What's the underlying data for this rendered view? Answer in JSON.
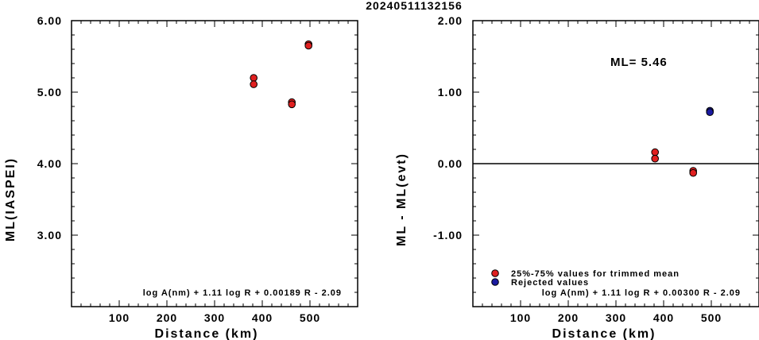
{
  "title": "20240511132156",
  "chart_data": [
    {
      "type": "scatter",
      "xlabel": "Distance (km)",
      "ylabel": "ML(IASPEI)",
      "xlim": [
        0,
        600
      ],
      "ylim": [
        2.0,
        6.0
      ],
      "xticks": [
        100,
        200,
        300,
        400,
        500
      ],
      "xtick_labels": [
        "100",
        "200",
        "300",
        "400",
        "500"
      ],
      "yticks": [
        3.0,
        4.0,
        5.0,
        6.0
      ],
      "ytick_labels": [
        "3.00",
        "4.00",
        "5.00",
        "6.00"
      ],
      "series": [
        {
          "color": "#e02020",
          "points": [
            {
              "x": 382,
              "y": 5.2
            },
            {
              "x": 382,
              "y": 5.11
            },
            {
              "x": 462,
              "y": 4.86
            },
            {
              "x": 462,
              "y": 4.83
            },
            {
              "x": 497,
              "y": 5.67
            },
            {
              "x": 497,
              "y": 5.65
            }
          ]
        }
      ],
      "annotation": "log A(nm) + 1.11 log R + 0.00189 R - 2.09",
      "grid": false
    },
    {
      "type": "scatter",
      "xlabel": "Distance (km)",
      "ylabel": "ML - ML(evt)",
      "xlim": [
        0,
        600
      ],
      "ylim": [
        -2.0,
        2.0
      ],
      "xticks": [
        100,
        200,
        300,
        400,
        500
      ],
      "xtick_labels": [
        "100",
        "200",
        "300",
        "400",
        "500"
      ],
      "yticks": [
        -1.0,
        0.0,
        1.0,
        2.0
      ],
      "ytick_labels": [
        "-1.00",
        "0.00",
        "1.00",
        "2.00"
      ],
      "zero_line": 0.0,
      "ml_text": "ML= 5.46",
      "series": [
        {
          "name": "25%-75% values for trimmed mean",
          "color": "#e02020",
          "points": [
            {
              "x": 382,
              "y": 0.16
            },
            {
              "x": 382,
              "y": 0.07
            },
            {
              "x": 462,
              "y": -0.1
            },
            {
              "x": 462,
              "y": -0.13
            }
          ]
        },
        {
          "name": "Rejected values",
          "color": "#1a1aa0",
          "points": [
            {
              "x": 497,
              "y": 0.74
            },
            {
              "x": 497,
              "y": 0.72
            }
          ]
        }
      ],
      "legend_position": "bottom-left",
      "annotation": "log A(nm) + 1.11 log R + 0.00300 R - 2.09",
      "grid": false
    }
  ]
}
